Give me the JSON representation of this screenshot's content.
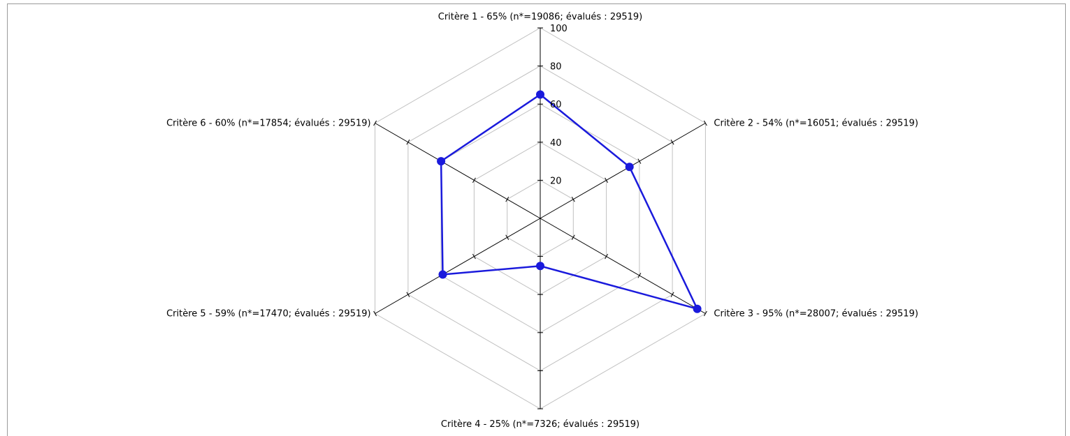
{
  "chart_data": {
    "type": "radar",
    "series_color": "#1a1adc",
    "axis_color": "#000000",
    "grid_color": "#c0c0c0",
    "scale": {
      "min": 0,
      "max": 100,
      "ticks": [
        20,
        40,
        60,
        80,
        100
      ]
    },
    "grid": true,
    "axes": [
      {
        "label": "Critère 1 - 65% (n*=19086; évalués : 29519)",
        "value": 65
      },
      {
        "label": "Critère 2 - 54% (n*=16051; évalués : 29519)",
        "value": 54
      },
      {
        "label": "Critère 3 - 95% (n*=28007; évalués : 29519)",
        "value": 95
      },
      {
        "label": "Critère 4 - 25% (n*=7326; évalués : 29519)",
        "value": 25
      },
      {
        "label": "Critère 5 - 59% (n*=17470; évalués : 29519)",
        "value": 59
      },
      {
        "label": "Critère 6 - 60% (n*=17854; évalués : 29519)",
        "value": 60
      }
    ]
  }
}
